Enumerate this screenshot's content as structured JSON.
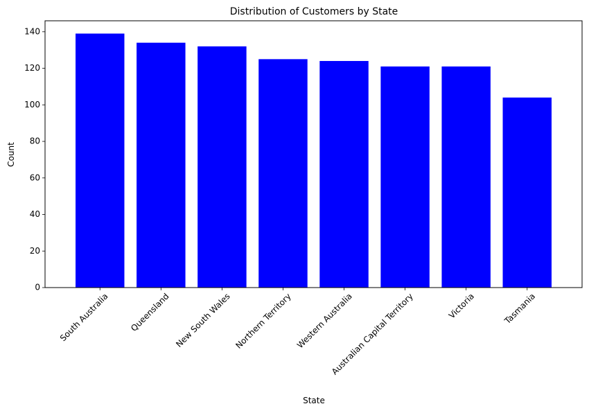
{
  "chart_data": {
    "type": "bar",
    "title": "Distribution of Customers by State",
    "xlabel": "State",
    "ylabel": "Count",
    "categories": [
      "South Australia",
      "Queensland",
      "New South Wales",
      "Northern Territory",
      "Western Australia",
      "Australian Capital Territory",
      "Victoria",
      "Tasmania"
    ],
    "values": [
      139,
      134,
      132,
      125,
      124,
      121,
      121,
      104
    ],
    "ylim": [
      0,
      146
    ],
    "yticks": [
      0,
      20,
      40,
      60,
      80,
      100,
      120,
      140
    ],
    "bar_color": "#0000ff",
    "grid": false,
    "x_tick_rotation_deg": 45
  }
}
